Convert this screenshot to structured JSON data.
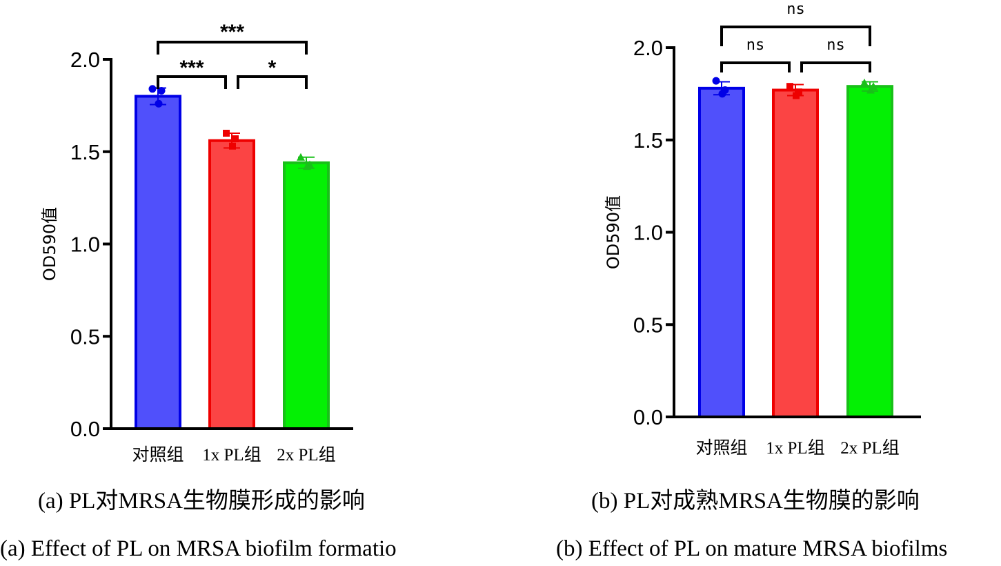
{
  "colors": {
    "control": {
      "fill": "#5050fb",
      "stroke": "#0000e6"
    },
    "pl1x": {
      "fill": "#fb4444",
      "stroke": "#ee0000"
    },
    "pl2x": {
      "fill": "#04f004",
      "stroke": "#19c019"
    },
    "axis": "#000000"
  },
  "chart_data": [
    {
      "type": "bar",
      "title": "",
      "xlabel": "",
      "ylabel": "OD590值",
      "ylim": [
        0,
        2.0
      ],
      "yticks": [
        0.0,
        0.5,
        1.0,
        1.5,
        2.0
      ],
      "ytick_labels": [
        "0.0",
        "0.5",
        "1.0",
        "1.5",
        "2.0"
      ],
      "grid": false,
      "legend": "none",
      "categories": [
        "对照组",
        "1x PL组",
        "2x PL组"
      ],
      "values": [
        1.8,
        1.56,
        1.44
      ],
      "error": [
        0.045,
        0.04,
        0.03
      ],
      "points": [
        [
          1.84,
          1.83,
          1.76
        ],
        [
          1.6,
          1.57,
          1.53
        ],
        [
          1.47,
          1.43,
          1.42
        ]
      ],
      "markers": [
        "circle",
        "square",
        "triangle"
      ],
      "significance": [
        {
          "from": 0,
          "to": 1,
          "label": "***"
        },
        {
          "from": 1,
          "to": 2,
          "label": "*"
        },
        {
          "from": 0,
          "to": 2,
          "label": "***"
        }
      ]
    },
    {
      "type": "bar",
      "title": "",
      "xlabel": "",
      "ylabel": "OD590值",
      "ylim": [
        0,
        2.0
      ],
      "yticks": [
        0.0,
        0.5,
        1.0,
        1.5,
        2.0
      ],
      "ytick_labels": [
        "0.0",
        "0.5",
        "1.0",
        "1.5",
        "2.0"
      ],
      "grid": false,
      "legend": "none",
      "categories": [
        "对照组",
        "1x PL组",
        "2x PL组"
      ],
      "values": [
        1.78,
        1.77,
        1.79
      ],
      "error": [
        0.035,
        0.03,
        0.025
      ],
      "points": [
        [
          1.82,
          1.77,
          1.75
        ],
        [
          1.79,
          1.76,
          1.74
        ],
        [
          1.81,
          1.79,
          1.77
        ]
      ],
      "markers": [
        "circle",
        "square",
        "triangle"
      ],
      "significance": [
        {
          "from": 0,
          "to": 1,
          "label": "ns"
        },
        {
          "from": 1,
          "to": 2,
          "label": "ns"
        },
        {
          "from": 0,
          "to": 2,
          "label": "ns"
        }
      ]
    }
  ],
  "captions": {
    "a_cn": "(a) PL对MRSA生物膜形成的影响",
    "a_en": "(a) Effect of PL on MRSA biofilm formatio",
    "b_cn": "(b) PL对成熟MRSA生物膜的影响",
    "b_en": "(b) Effect of PL on mature MRSA biofilms"
  }
}
